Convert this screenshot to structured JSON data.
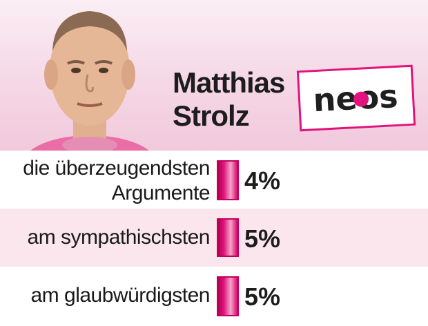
{
  "candidate": {
    "first_name": "Matthias",
    "last_name": "Strolz",
    "party_logo_text": "neos"
  },
  "colors": {
    "accent": "#e0147c",
    "header_bg": "#f6dbe8",
    "row_alt": "#fbe6ee"
  },
  "chart_data": {
    "type": "bar",
    "orientation": "horizontal",
    "categories": [
      "die überzeugendsten Argumente",
      "am sympathischsten",
      "am glaubwürdigsten"
    ],
    "category_lines": [
      [
        "die überzeugendsten",
        "Argumente"
      ],
      [
        "am sympathischsten"
      ],
      [
        "am glaubwürdigsten"
      ]
    ],
    "values": [
      4,
      5,
      5
    ],
    "value_labels": [
      "4%",
      "5%",
      "5%"
    ],
    "unit": "%"
  }
}
